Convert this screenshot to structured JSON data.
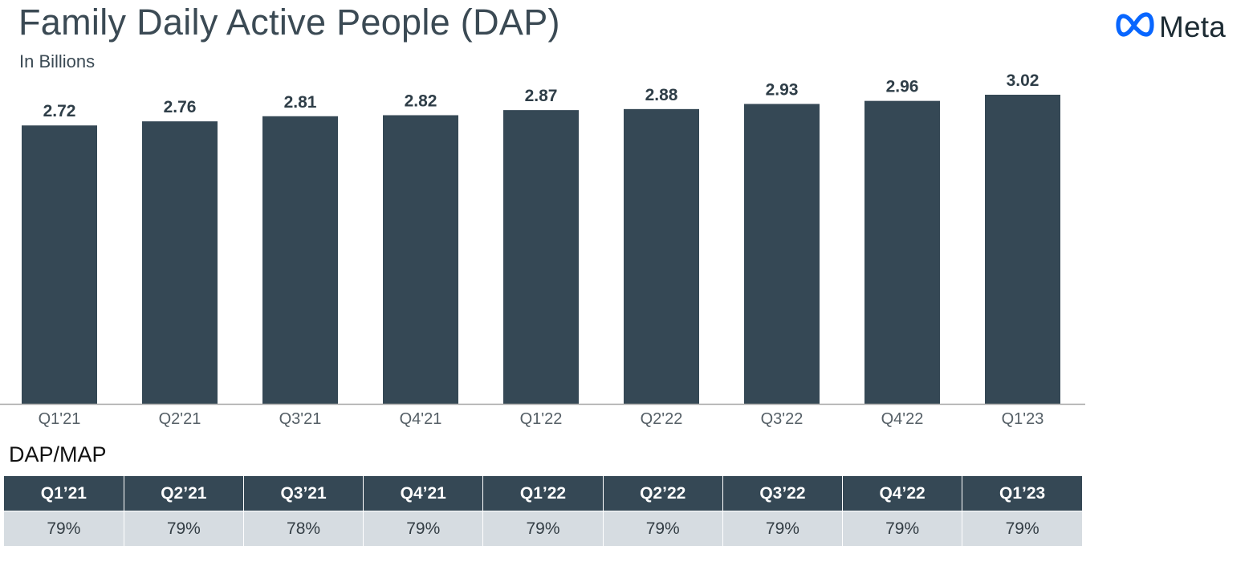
{
  "header": {
    "title": "Family Daily Active People (DAP)",
    "subtitle": "In Billions"
  },
  "brand": {
    "logo_icon": "meta-infinity-icon",
    "name": "Meta",
    "color": "#0866ff"
  },
  "chart_data": {
    "type": "bar",
    "title": "Family Daily Active People (DAP)",
    "subtitle": "In Billions",
    "categories": [
      "Q1'21",
      "Q2'21",
      "Q3'21",
      "Q4'21",
      "Q1'22",
      "Q2'22",
      "Q3'22",
      "Q4'22",
      "Q1'23"
    ],
    "values": [
      2.72,
      2.76,
      2.81,
      2.82,
      2.87,
      2.88,
      2.93,
      2.96,
      3.02
    ],
    "value_labels": [
      "2.72",
      "2.76",
      "2.81",
      "2.82",
      "2.87",
      "2.88",
      "2.93",
      "2.96",
      "3.02"
    ],
    "ylim": [
      0,
      3.02
    ],
    "grid": false,
    "legend": "none",
    "bar_color": "#354855",
    "label_color": "#2f3e48",
    "axis_color": "#a6a6a6"
  },
  "table": {
    "heading": "DAP/MAP",
    "columns": [
      "Q1’21",
      "Q2’21",
      "Q3’21",
      "Q4’21",
      "Q1’22",
      "Q2’22",
      "Q3’22",
      "Q4’22",
      "Q1’23"
    ],
    "values": [
      "79%",
      "79%",
      "78%",
      "79%",
      "79%",
      "79%",
      "79%",
      "79%",
      "79%"
    ],
    "header_color": "#354855",
    "row_color": "#d6dce1"
  }
}
